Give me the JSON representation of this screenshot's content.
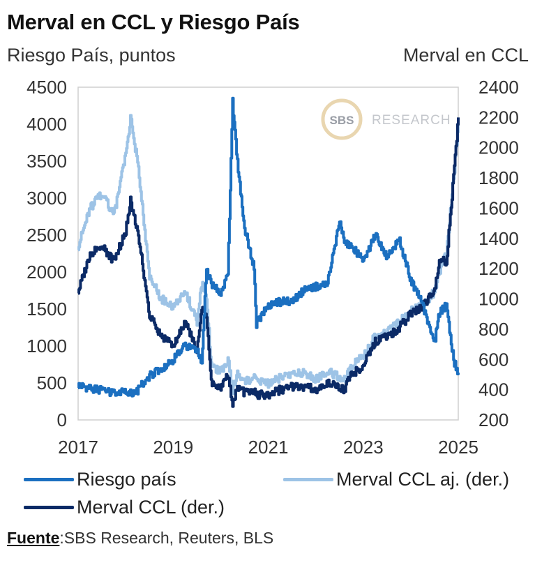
{
  "header": {
    "title": "Merval en CCL y Riesgo País",
    "left_axis_label": "Riesgo País, puntos",
    "right_axis_label": "Merval en CCL"
  },
  "watermark": {
    "badge": "SBS",
    "text": "RESEARCH"
  },
  "legend": {
    "items": [
      {
        "label": "Riesgo país",
        "color": "#1B6FC0"
      },
      {
        "label": "Merval CCL aj. (der.)",
        "color": "#9DC3E6"
      },
      {
        "label": "Merval CCL (der.)",
        "color": "#0B2A66"
      }
    ]
  },
  "source": {
    "label": "Fuente",
    "text": ":SBS Research, Reuters, BLS"
  },
  "chart_data": {
    "type": "line",
    "title": "Merval en CCL y Riesgo País",
    "ylabel": "Riesgo País, puntos",
    "y2label": "Merval en CCL",
    "ylim": [
      0,
      4500
    ],
    "y2lim": [
      200,
      2400
    ],
    "xlim": [
      2017.0,
      2025.0
    ],
    "yticks": [
      0,
      500,
      1000,
      1500,
      2000,
      2500,
      3000,
      3500,
      4000,
      4500
    ],
    "y2ticks": [
      200,
      400,
      600,
      800,
      1000,
      1200,
      1400,
      1600,
      1800,
      2000,
      2200,
      2400
    ],
    "xticks": [
      2017,
      2019,
      2021,
      2023,
      2025
    ],
    "grid": false,
    "legend_position": "bottom",
    "x": [
      2017.0,
      2017.25,
      2017.5,
      2017.75,
      2018.0,
      2018.1,
      2018.25,
      2018.5,
      2018.75,
      2019.0,
      2019.25,
      2019.5,
      2019.6,
      2019.7,
      2019.8,
      2020.0,
      2020.15,
      2020.25,
      2020.35,
      2020.5,
      2020.7,
      2020.75,
      2021.0,
      2021.25,
      2021.5,
      2021.75,
      2022.0,
      2022.25,
      2022.5,
      2022.6,
      2022.75,
      2023.0,
      2023.25,
      2023.5,
      2023.75,
      2024.0,
      2024.25,
      2024.5,
      2024.6,
      2024.75,
      2024.9,
      2025.0
    ],
    "series": [
      {
        "name": "Riesgo país",
        "axis": "left",
        "color": "#1B6FC0",
        "values": [
          470,
          430,
          400,
          360,
          380,
          360,
          400,
          600,
          700,
          820,
          1000,
          930,
          780,
          2050,
          1850,
          1700,
          1950,
          4300,
          3500,
          2600,
          2050,
          1300,
          1550,
          1600,
          1600,
          1750,
          1800,
          1850,
          2700,
          2400,
          2350,
          2150,
          2500,
          2200,
          2450,
          1900,
          1550,
          1050,
          1450,
          1550,
          800,
          640
        ]
      },
      {
        "name": "Merval CCL aj. (der.)",
        "axis": "right",
        "color": "#9DC3E6",
        "values": [
          1350,
          1600,
          1700,
          1550,
          1950,
          2200,
          1900,
          1150,
          1000,
          950,
          1050,
          850,
          1100,
          1000,
          560,
          520,
          600,
          400,
          500,
          450,
          480,
          470,
          440,
          480,
          500,
          510,
          470,
          520,
          480,
          470,
          560,
          620,
          760,
          780,
          850,
          920,
          960,
          1050,
          1180,
          1300,
          1800,
          2150
        ]
      },
      {
        "name": "Merval CCL (der.)",
        "axis": "right",
        "color": "#0B2A66",
        "values": [
          1050,
          1300,
          1350,
          1250,
          1450,
          1650,
          1450,
          900,
          750,
          700,
          850,
          650,
          950,
          900,
          450,
          420,
          500,
          300,
          420,
          380,
          400,
          370,
          360,
          400,
          420,
          420,
          400,
          440,
          420,
          400,
          500,
          560,
          720,
          750,
          810,
          900,
          950,
          1050,
          1250,
          1250,
          1800,
          2200
        ]
      }
    ]
  }
}
